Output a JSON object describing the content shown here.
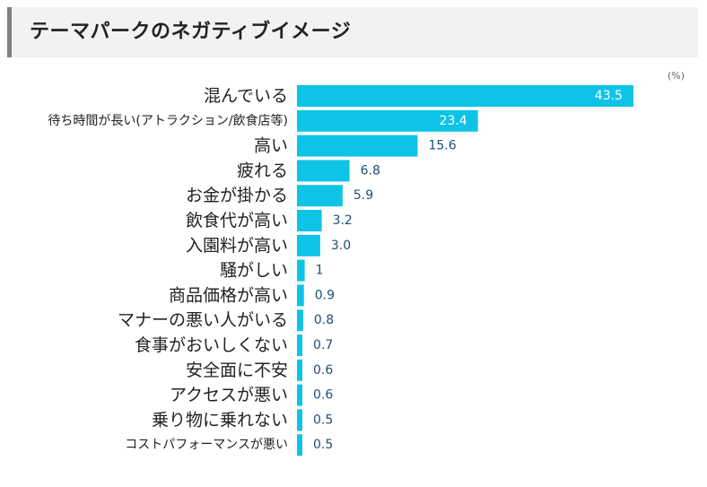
{
  "header": {
    "title": "テーマパークのネガティブイメージ"
  },
  "chart_data": {
    "type": "bar",
    "orientation": "horizontal",
    "title": "テーマパークのネガティブイメージ",
    "unit": "(%)",
    "categories": [
      "混んでいる",
      "待ち時間が長い(アトラクション/飲食店等)",
      "高い",
      "疲れる",
      "お金が掛かる",
      "飲食代が高い",
      "入園料が高い",
      "騒がしい",
      "商品価格が高い",
      "マナーの悪い人がいる",
      "食事がおいしくない",
      "安全面に不安",
      "アクセスが悪い",
      "乗り物に乗れない",
      "コストパフォーマンスが悪い"
    ],
    "values": [
      43.5,
      23.4,
      15.6,
      6.8,
      5.9,
      3.2,
      3.0,
      1,
      0.9,
      0.8,
      0.7,
      0.6,
      0.6,
      0.5,
      0.5
    ],
    "value_labels": [
      "43.5",
      "23.4",
      "15.6",
      "6.8",
      "5.9",
      "3.2",
      "3.0",
      "1",
      "0.9",
      "0.8",
      "0.7",
      "0.6",
      "0.6",
      "0.5",
      "0.5"
    ],
    "bar_color": "#0ec4e6",
    "label_color": "#1f4e79"
  }
}
